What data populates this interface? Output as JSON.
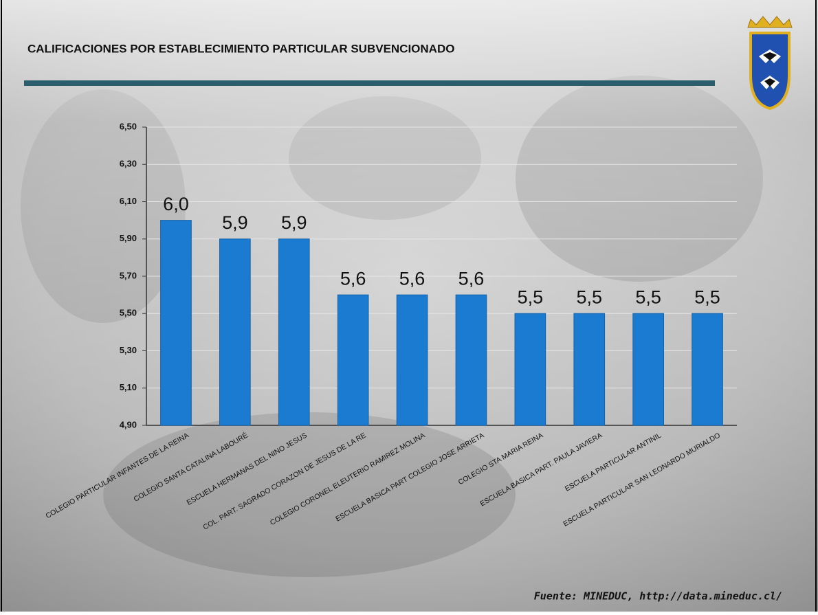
{
  "chart_data": {
    "type": "bar",
    "title": "CALIFICACIONES POR ESTABLECIMIENTO PARTICULAR SUBVENCIONADO",
    "categories": [
      "COLEGIO PARTICULAR INFANTES DE LA REINA",
      "COLEGIO SANTA CATALINA LABOURÉ",
      "ESCUELA HERMANAS DEL NINO JESUS",
      "COL. PART. SAGRADO CORAZON DE JESUS DE LA RE",
      "COLEGIO CORONEL ELEUTERIO RAMIREZ MOLINA",
      "ESCUELA BASICA PART COLEGIO JOSE ARRIETA",
      "COLEGIO STA MARIA  REINA",
      "ESCUELA BASICA PART. PAULA JAVIERA",
      "ESCUELA PARTICULAR  ANTINIL",
      "ESCUELA PARTICULAR  SAN LEONARDO MURIALDO"
    ],
    "values": [
      6.0,
      5.9,
      5.9,
      5.6,
      5.6,
      5.6,
      5.5,
      5.5,
      5.5,
      5.5
    ],
    "value_labels": [
      "6,0",
      "5,9",
      "5,9",
      "5,6",
      "5,6",
      "5,6",
      "5,5",
      "5,5",
      "5,5",
      "5,5"
    ],
    "color": "#1a7bd0",
    "ylim": [
      4.9,
      6.5
    ],
    "yticks": [
      {
        "value": 4.9,
        "label": "4,90"
      },
      {
        "value": 5.1,
        "label": "5,10"
      },
      {
        "value": 5.3,
        "label": "5,30"
      },
      {
        "value": 5.5,
        "label": "5,50"
      },
      {
        "value": 5.7,
        "label": "5,70"
      },
      {
        "value": 5.9,
        "label": "5,90"
      },
      {
        "value": 6.1,
        "label": "6,10"
      },
      {
        "value": 6.3,
        "label": "6,30"
      },
      {
        "value": 6.5,
        "label": "6,50"
      }
    ],
    "grid": true,
    "source": "Fuente: MINEDUC, http://data.mineduc.cl/"
  }
}
